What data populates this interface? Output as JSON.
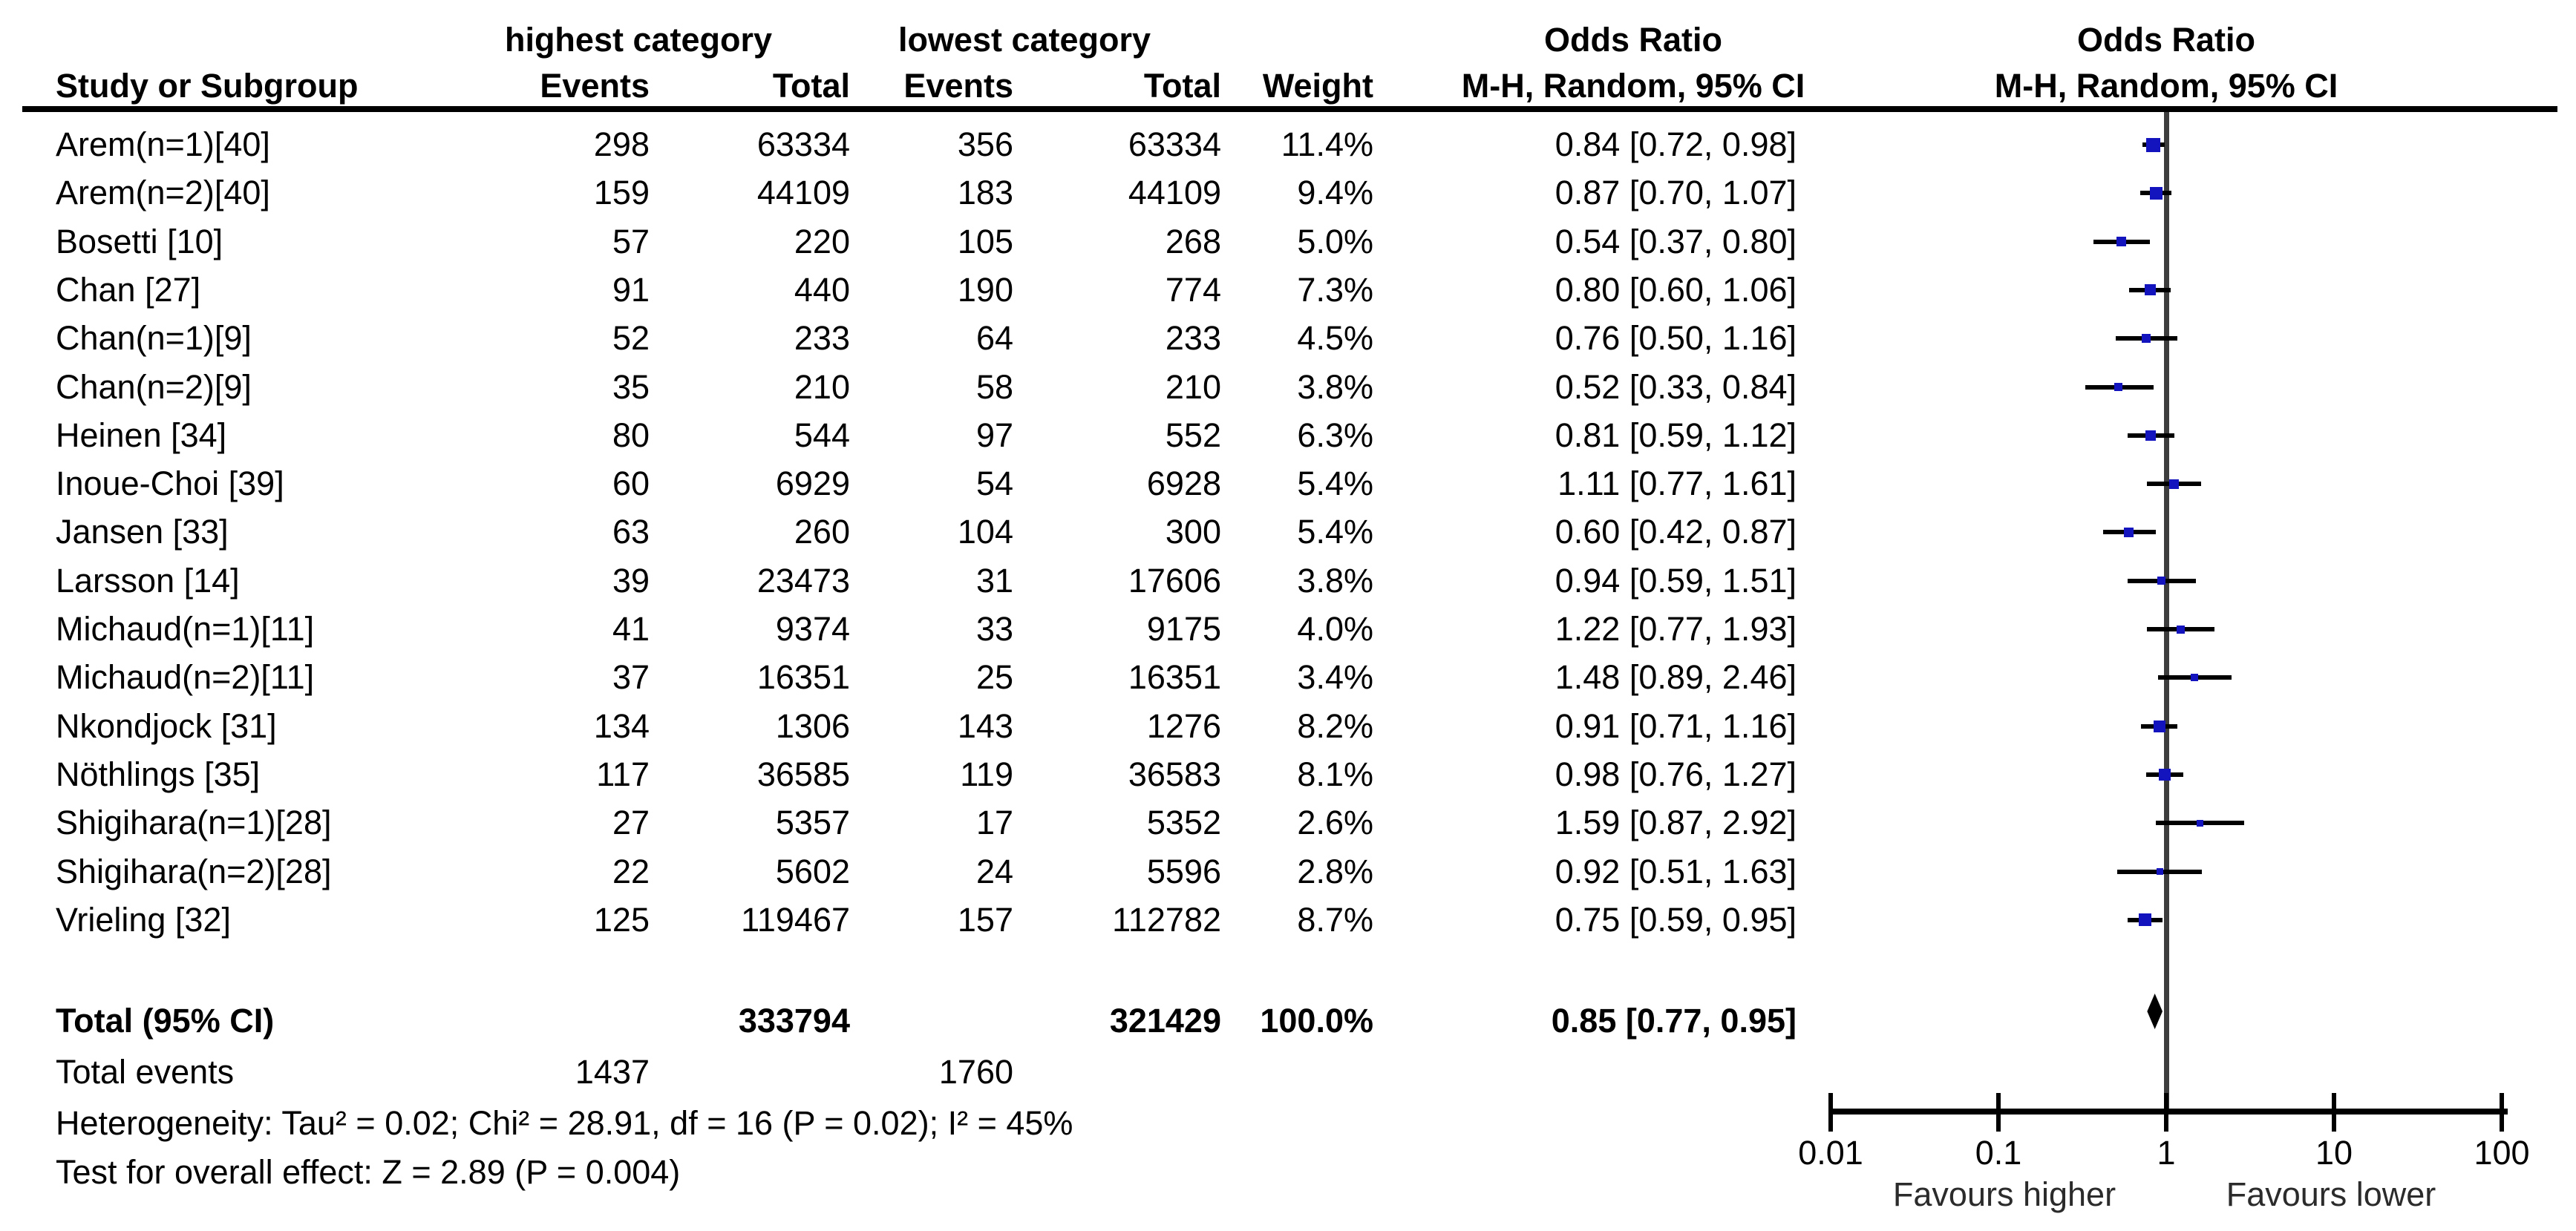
{
  "headers": {
    "group_high": "highest category",
    "group_low": "lowest category",
    "group_or_text": "Odds Ratio",
    "group_or_plot": "Odds Ratio",
    "study": "Study or Subgroup",
    "events_high": "Events",
    "total_high": "Total",
    "events_low": "Events",
    "total_low": "Total",
    "weight": "Weight",
    "mh_text": "M-H, Random, 95% CI",
    "mh_plot": "M-H, Random, 95% CI"
  },
  "chart_data": {
    "type": "forest",
    "effect_measure": "Odds Ratio (M-H, Random, 95% CI)",
    "axis": {
      "scale": "log10",
      "ticks": [
        0.01,
        0.1,
        1,
        10,
        100
      ],
      "tick_labels": [
        "0.01",
        "0.1",
        "1",
        "10",
        "100"
      ],
      "favours_left": "Favours higher",
      "favours_right": "Favours lower"
    },
    "studies": [
      {
        "name": "Arem(n=1)[40]",
        "e1": "298",
        "t1": "63334",
        "e2": "356",
        "t2": "63334",
        "weight": "11.4%",
        "w": 11.4,
        "or_label": "0.84 [0.72, 0.98]",
        "or": 0.84,
        "lo": 0.72,
        "hi": 0.98
      },
      {
        "name": "Arem(n=2)[40]",
        "e1": "159",
        "t1": "44109",
        "e2": "183",
        "t2": "44109",
        "weight": "9.4%",
        "w": 9.4,
        "or_label": "0.87 [0.70, 1.07]",
        "or": 0.87,
        "lo": 0.7,
        "hi": 1.07
      },
      {
        "name": "Bosetti [10]",
        "e1": "57",
        "t1": "220",
        "e2": "105",
        "t2": "268",
        "weight": "5.0%",
        "w": 5.0,
        "or_label": "0.54 [0.37, 0.80]",
        "or": 0.54,
        "lo": 0.37,
        "hi": 0.8
      },
      {
        "name": "Chan [27]",
        "e1": "91",
        "t1": "440",
        "e2": "190",
        "t2": "774",
        "weight": "7.3%",
        "w": 7.3,
        "or_label": "0.80 [0.60, 1.06]",
        "or": 0.8,
        "lo": 0.6,
        "hi": 1.06
      },
      {
        "name": "Chan(n=1)[9]",
        "e1": "52",
        "t1": "233",
        "e2": "64",
        "t2": "233",
        "weight": "4.5%",
        "w": 4.5,
        "or_label": "0.76 [0.50, 1.16]",
        "or": 0.76,
        "lo": 0.5,
        "hi": 1.16
      },
      {
        "name": "Chan(n=2)[9]",
        "e1": "35",
        "t1": "210",
        "e2": "58",
        "t2": "210",
        "weight": "3.8%",
        "w": 3.8,
        "or_label": "0.52 [0.33, 0.84]",
        "or": 0.52,
        "lo": 0.33,
        "hi": 0.84
      },
      {
        "name": "Heinen [34]",
        "e1": "80",
        "t1": "544",
        "e2": "97",
        "t2": "552",
        "weight": "6.3%",
        "w": 6.3,
        "or_label": "0.81 [0.59, 1.12]",
        "or": 0.81,
        "lo": 0.59,
        "hi": 1.12
      },
      {
        "name": "Inoue-Choi [39]",
        "e1": "60",
        "t1": "6929",
        "e2": "54",
        "t2": "6928",
        "weight": "5.4%",
        "w": 5.4,
        "or_label": "1.11 [0.77, 1.61]",
        "or": 1.11,
        "lo": 0.77,
        "hi": 1.61
      },
      {
        "name": "Jansen [33]",
        "e1": "63",
        "t1": "260",
        "e2": "104",
        "t2": "300",
        "weight": "5.4%",
        "w": 5.4,
        "or_label": "0.60 [0.42, 0.87]",
        "or": 0.6,
        "lo": 0.42,
        "hi": 0.87
      },
      {
        "name": "Larsson [14]",
        "e1": "39",
        "t1": "23473",
        "e2": "31",
        "t2": "17606",
        "weight": "3.8%",
        "w": 3.8,
        "or_label": "0.94 [0.59, 1.51]",
        "or": 0.94,
        "lo": 0.59,
        "hi": 1.51
      },
      {
        "name": "Michaud(n=1)[11]",
        "e1": "41",
        "t1": "9374",
        "e2": "33",
        "t2": "9175",
        "weight": "4.0%",
        "w": 4.0,
        "or_label": "1.22 [0.77, 1.93]",
        "or": 1.22,
        "lo": 0.77,
        "hi": 1.93
      },
      {
        "name": "Michaud(n=2)[11]",
        "e1": "37",
        "t1": "16351",
        "e2": "25",
        "t2": "16351",
        "weight": "3.4%",
        "w": 3.4,
        "or_label": "1.48 [0.89, 2.46]",
        "or": 1.48,
        "lo": 0.89,
        "hi": 2.46
      },
      {
        "name": "Nkondjock [31]",
        "e1": "134",
        "t1": "1306",
        "e2": "143",
        "t2": "1276",
        "weight": "8.2%",
        "w": 8.2,
        "or_label": "0.91 [0.71, 1.16]",
        "or": 0.91,
        "lo": 0.71,
        "hi": 1.16
      },
      {
        "name": "Nöthlings [35]",
        "e1": "117",
        "t1": "36585",
        "e2": "119",
        "t2": "36583",
        "weight": "8.1%",
        "w": 8.1,
        "or_label": "0.98 [0.76, 1.27]",
        "or": 0.98,
        "lo": 0.76,
        "hi": 1.27
      },
      {
        "name": "Shigihara(n=1)[28]",
        "e1": "27",
        "t1": "5357",
        "e2": "17",
        "t2": "5352",
        "weight": "2.6%",
        "w": 2.6,
        "or_label": "1.59 [0.87, 2.92]",
        "or": 1.59,
        "lo": 0.87,
        "hi": 2.92
      },
      {
        "name": "Shigihara(n=2)[28]",
        "e1": "22",
        "t1": "5602",
        "e2": "24",
        "t2": "5596",
        "weight": "2.8%",
        "w": 2.8,
        "or_label": "0.92 [0.51, 1.63]",
        "or": 0.92,
        "lo": 0.51,
        "hi": 1.63
      },
      {
        "name": "Vrieling [32]",
        "e1": "125",
        "t1": "119467",
        "e2": "157",
        "t2": "112782",
        "weight": "8.7%",
        "w": 8.7,
        "or_label": "0.75 [0.59, 0.95]",
        "or": 0.75,
        "lo": 0.59,
        "hi": 0.95
      }
    ],
    "total": {
      "label": "Total (95% CI)",
      "t1": "333794",
      "t2": "321429",
      "weight": "100.0%",
      "or_label": "0.85 [0.77, 0.95]",
      "or": 0.85,
      "lo": 0.77,
      "hi": 0.95
    },
    "total_events": {
      "label": "Total events",
      "e1": "1437",
      "e2": "1760"
    },
    "heterogeneity": "Heterogeneity: Tau² = 0.02; Chi² = 28.91, df = 16 (P = 0.02); I² = 45%",
    "overall_effect": "Test for overall effect: Z = 2.89 (P = 0.004)"
  },
  "colors": {
    "marker_blue": "#1414BE",
    "diamond_black": "#000000",
    "line_black": "#000000",
    "center_line_gray": "#3d3d3d"
  }
}
